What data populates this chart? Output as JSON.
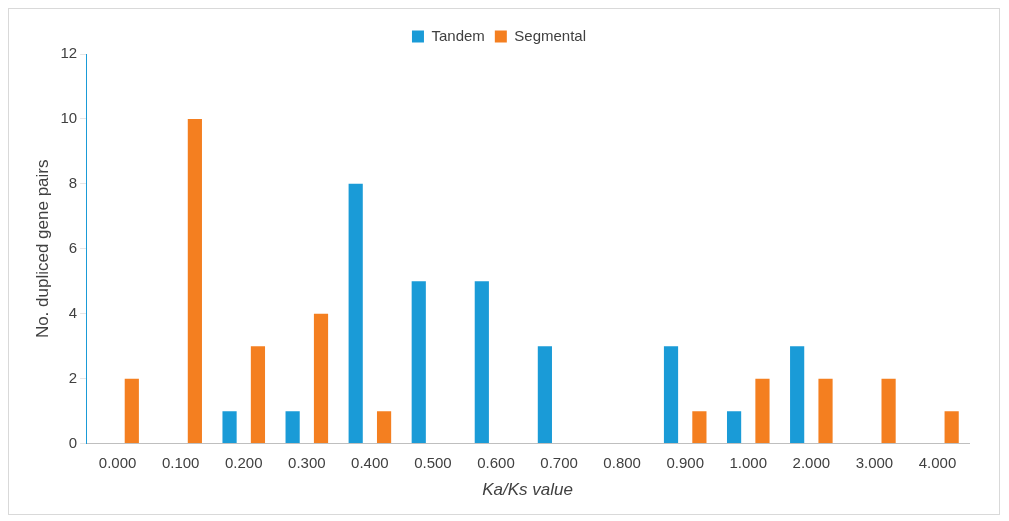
{
  "chart_data": {
    "type": "bar",
    "xlabel": "Ka/Ks value",
    "ylabel": "No. dupliced gene pairs",
    "categories": [
      "0.000",
      "0.100",
      "0.200",
      "0.300",
      "0.400",
      "0.500",
      "0.600",
      "0.700",
      "0.800",
      "0.900",
      "1.000",
      "2.000",
      "3.000",
      "4.000"
    ],
    "series": [
      {
        "name": "Tandem",
        "color": "#1a9bd7",
        "values": [
          0,
          0,
          1,
          1,
          8,
          5,
          5,
          3,
          0,
          3,
          1,
          3,
          0,
          0
        ]
      },
      {
        "name": "Segmental",
        "color": "#f47f20",
        "values": [
          2,
          10,
          3,
          4,
          1,
          0,
          0,
          0,
          0,
          1,
          2,
          2,
          2,
          1
        ]
      }
    ],
    "ylim": [
      0,
      12
    ],
    "yticks": [
      0,
      2,
      4,
      6,
      8,
      10,
      12
    ],
    "grid": false,
    "legend": "top"
  }
}
